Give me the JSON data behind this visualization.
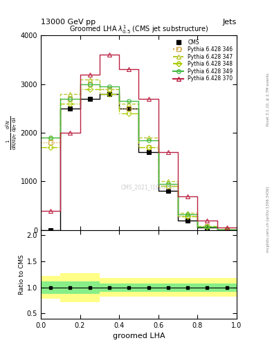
{
  "title": "Groomed LHA $\\lambda^{1}_{0.5}$ (CMS jet substructure)",
  "header_left": "13000 GeV pp",
  "header_right": "Jets",
  "xlabel": "groomed LHA",
  "ylabel_ratio": "Ratio to CMS",
  "watermark": "CMS_2021_I1920187",
  "right_label": "mcplots.cern.ch [arXiv:1306.3436]",
  "rivet_label": "Rivet 3.1.10, ≥ 2.7M events",
  "x_edges": [
    0.0,
    0.1,
    0.2,
    0.3,
    0.4,
    0.5,
    0.6,
    0.7,
    0.8,
    0.9,
    1.0
  ],
  "cms_y": [
    0.0,
    2500.0,
    2700.0,
    2800.0,
    2500.0,
    1600.0,
    800.0,
    200.0,
    50.0,
    10.0
  ],
  "p346_y": [
    1800.0,
    2700.0,
    3000.0,
    2900.0,
    2500.0,
    1700.0,
    900.0,
    300.0,
    80.0,
    10.0
  ],
  "p347_y": [
    1900.0,
    2800.0,
    3100.0,
    2900.0,
    2600.0,
    1900.0,
    1000.0,
    350.0,
    80.0,
    10.0
  ],
  "p348_y": [
    1700.0,
    2600.0,
    2900.0,
    2800.0,
    2400.0,
    1700.0,
    900.0,
    280.0,
    70.0,
    10.0
  ],
  "p349_y": [
    1900.0,
    2700.0,
    3000.0,
    2950.0,
    2650.0,
    1850.0,
    950.0,
    320.0,
    75.0,
    10.0
  ],
  "p370_y": [
    400.0,
    2000.0,
    3200.0,
    3600.0,
    3300.0,
    2700.0,
    1600.0,
    700.0,
    200.0,
    50.0
  ],
  "band_green_lo": [
    0.88,
    0.88,
    0.88,
    0.92,
    0.92,
    0.92,
    0.92,
    0.92,
    0.92,
    0.92
  ],
  "band_green_hi": [
    1.12,
    1.12,
    1.12,
    1.08,
    1.08,
    1.08,
    1.08,
    1.08,
    1.08,
    1.08
  ],
  "band_yellow_lo": [
    0.78,
    0.72,
    0.72,
    0.82,
    0.82,
    0.82,
    0.82,
    0.82,
    0.82,
    0.82
  ],
  "band_yellow_hi": [
    1.22,
    1.28,
    1.28,
    1.18,
    1.18,
    1.18,
    1.18,
    1.18,
    1.18,
    1.18
  ],
  "color_346": "#d4a843",
  "color_347": "#b8c830",
  "color_348": "#aacc00",
  "color_349": "#44bb44",
  "color_370": "#bb2244",
  "ylim_main": [
    0,
    4000
  ],
  "ylim_ratio": [
    0.4,
    2.1
  ],
  "yticks_main": [
    0,
    1000,
    2000,
    3000,
    4000
  ],
  "yticks_ratio": [
    0.5,
    1.0,
    1.5,
    2.0
  ]
}
